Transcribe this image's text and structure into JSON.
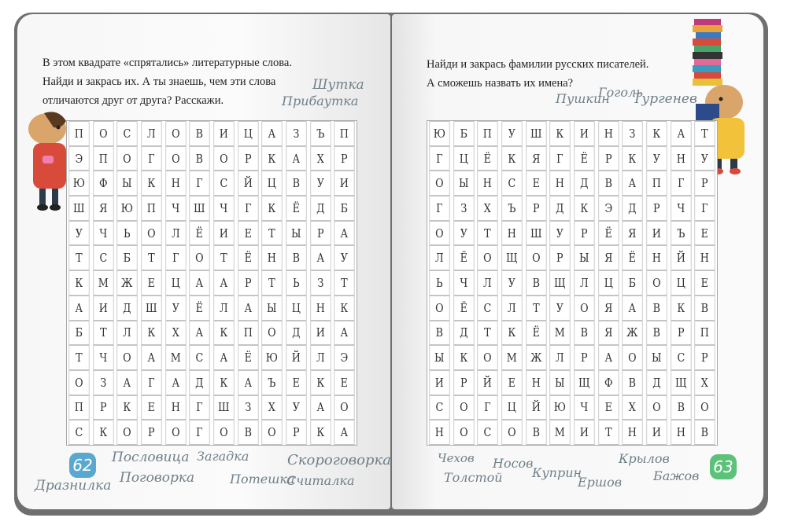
{
  "left_page": {
    "instruction_lines": [
      "В этом квадрате «спрятались» литературные слова.",
      "Найди и закрась их. А ты знаешь, чем эти слова",
      "отличаются друг от друга? Расскажи."
    ],
    "page_number": "62",
    "page_number_color": "#5aa8cf",
    "hint_words_top": [
      "Шутка",
      "Прибаутка"
    ],
    "hint_words_bottom": [
      "Пословица",
      "Загадка",
      "Скороговорка",
      "Дразнилка",
      "Поговорка",
      "Потешка",
      "Считалка"
    ],
    "grid": [
      [
        "П",
        "О",
        "С",
        "Л",
        "О",
        "В",
        "И",
        "Ц",
        "А",
        "З",
        "Ъ",
        "П"
      ],
      [
        "Э",
        "П",
        "О",
        "Г",
        "О",
        "В",
        "О",
        "Р",
        "К",
        "А",
        "Х",
        "Р"
      ],
      [
        "Ю",
        "Ф",
        "Ы",
        "К",
        "Н",
        "Г",
        "С",
        "Й",
        "Ц",
        "В",
        "У",
        "И"
      ],
      [
        "Ш",
        "Я",
        "Ю",
        "П",
        "Ч",
        "Ш",
        "Ч",
        "Г",
        "К",
        "Ё",
        "Д",
        "Б"
      ],
      [
        "У",
        "Ч",
        "Ь",
        "О",
        "Л",
        "Ё",
        "И",
        "Е",
        "Т",
        "Ы",
        "Р",
        "А"
      ],
      [
        "Т",
        "С",
        "Б",
        "Т",
        "Г",
        "О",
        "Т",
        "Ё",
        "Н",
        "В",
        "А",
        "У"
      ],
      [
        "К",
        "М",
        "Ж",
        "Е",
        "Ц",
        "А",
        "А",
        "Р",
        "Т",
        "Ь",
        "З",
        "Т"
      ],
      [
        "А",
        "И",
        "Д",
        "Ш",
        "У",
        "Ё",
        "Л",
        "А",
        "Ы",
        "Ц",
        "Н",
        "К"
      ],
      [
        "Б",
        "Т",
        "Л",
        "К",
        "Х",
        "А",
        "К",
        "П",
        "О",
        "Д",
        "И",
        "А"
      ],
      [
        "Т",
        "Ч",
        "О",
        "А",
        "М",
        "С",
        "А",
        "Ё",
        "Ю",
        "Й",
        "Л",
        "Э"
      ],
      [
        "О",
        "З",
        "А",
        "Г",
        "А",
        "Д",
        "К",
        "А",
        "Ъ",
        "Е",
        "К",
        "Е"
      ],
      [
        "П",
        "Р",
        "К",
        "Е",
        "Н",
        "Г",
        "Ш",
        "З",
        "Х",
        "У",
        "А",
        "О"
      ],
      [
        "С",
        "К",
        "О",
        "Р",
        "О",
        "Г",
        "О",
        "В",
        "О",
        "Р",
        "К",
        "А"
      ]
    ]
  },
  "right_page": {
    "instruction_lines": [
      "Найди и закрась фамилии русских писателей.",
      "А сможешь назвать их имена?"
    ],
    "page_number": "63",
    "page_number_color": "#5cc27a",
    "hint_words_top": [
      "Пушкин",
      "Гоголь",
      "Тургенев"
    ],
    "hint_words_bottom": [
      "Чехов",
      "Толстой",
      "Носов",
      "Куприн",
      "Ершов",
      "Крылов",
      "Бажов"
    ],
    "grid": [
      [
        "Ю",
        "Б",
        "П",
        "У",
        "Ш",
        "К",
        "И",
        "Н",
        "З",
        "К",
        "А",
        "Т"
      ],
      [
        "Г",
        "Ц",
        "Ё",
        "К",
        "Я",
        "Г",
        "Ё",
        "Р",
        "К",
        "У",
        "Н",
        "У"
      ],
      [
        "О",
        "Ы",
        "Н",
        "С",
        "Е",
        "Н",
        "Д",
        "В",
        "А",
        "П",
        "Г",
        "Р"
      ],
      [
        "Г",
        "З",
        "Х",
        "Ъ",
        "Р",
        "Д",
        "К",
        "Э",
        "Д",
        "Р",
        "Ч",
        "Г"
      ],
      [
        "О",
        "У",
        "Т",
        "Н",
        "Ш",
        "У",
        "Р",
        "Ё",
        "Я",
        "И",
        "Ъ",
        "Е"
      ],
      [
        "Л",
        "Ё",
        "О",
        "Щ",
        "О",
        "Р",
        "Ы",
        "Я",
        "Ё",
        "Н",
        "Й",
        "Н"
      ],
      [
        "Ь",
        "Ч",
        "Л",
        "У",
        "В",
        "Щ",
        "Л",
        "Ц",
        "Б",
        "О",
        "Ц",
        "Е"
      ],
      [
        "О",
        "Ё",
        "С",
        "Л",
        "Т",
        "У",
        "О",
        "Я",
        "А",
        "В",
        "К",
        "В"
      ],
      [
        "В",
        "Д",
        "Т",
        "К",
        "Ё",
        "М",
        "В",
        "Я",
        "Ж",
        "В",
        "Р",
        "П"
      ],
      [
        "Ы",
        "К",
        "О",
        "М",
        "Ж",
        "Л",
        "Р",
        "А",
        "О",
        "Ы",
        "С",
        "Р"
      ],
      [
        "И",
        "Р",
        "Й",
        "Е",
        "Н",
        "Ы",
        "Щ",
        "Ф",
        "В",
        "Д",
        "Щ",
        "Х"
      ],
      [
        "С",
        "О",
        "Г",
        "Ц",
        "Й",
        "Ю",
        "Ч",
        "Е",
        "Х",
        "О",
        "В",
        "О"
      ],
      [
        "Н",
        "О",
        "С",
        "О",
        "В",
        "М",
        "И",
        "Т",
        "Н",
        "И",
        "Н",
        "В"
      ]
    ]
  }
}
